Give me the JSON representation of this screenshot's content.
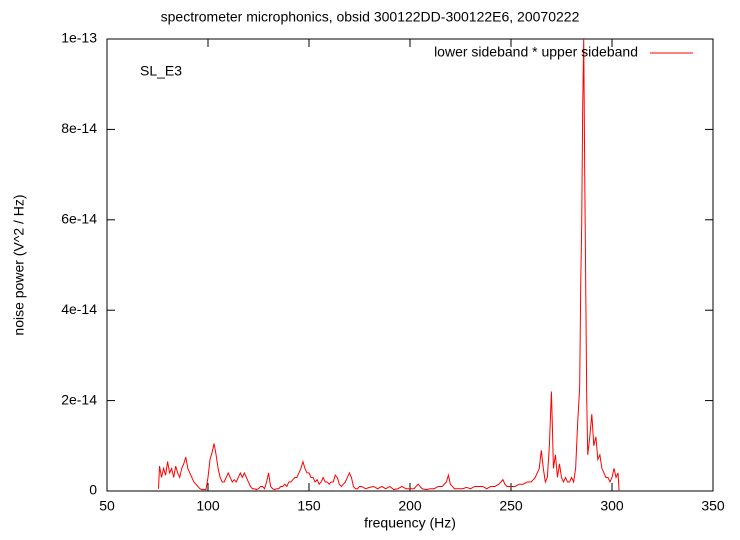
{
  "chart_data": {
    "type": "line",
    "title": "spectrometer microphonics, obsid 300122DD-300122E6, 20070222",
    "xlabel": "frequency (Hz)",
    "ylabel": "noise power (V^2 / Hz)",
    "annotation": "SL_E3",
    "legend": "top-right",
    "xlim": [
      50,
      350
    ],
    "xticks": [
      50,
      100,
      150,
      200,
      250,
      300,
      350
    ],
    "ylim": [
      0,
      1e-13
    ],
    "yticks": [
      0,
      {
        "value": 2e-14,
        "label": "2e-14"
      },
      {
        "value": 4e-14,
        "label": "4e-14"
      },
      {
        "value": 6e-14,
        "label": "6e-14"
      },
      {
        "value": 8e-14,
        "label": "8e-14"
      },
      {
        "value": 1e-13,
        "label": "1e-13"
      }
    ],
    "x": [
      75.5,
      76,
      77,
      78,
      79,
      80,
      81,
      82,
      83,
      84,
      85,
      86,
      87,
      88,
      89,
      90,
      91,
      92,
      93,
      94,
      95,
      96,
      97,
      98,
      99,
      100,
      101,
      102,
      103,
      104,
      105,
      106,
      107,
      108,
      109,
      110,
      111,
      112,
      113,
      114,
      115,
      116,
      117,
      118,
      119,
      120,
      121,
      122,
      123,
      124,
      125,
      126,
      127,
      128,
      129,
      130,
      131,
      132,
      133,
      134,
      135,
      136,
      137,
      138,
      139,
      140,
      141,
      142,
      143,
      144,
      145,
      146,
      147,
      148,
      149,
      150,
      151,
      152,
      153,
      154,
      155,
      156,
      157,
      158,
      159,
      160,
      161,
      162,
      163,
      164,
      165,
      166,
      167,
      168,
      169,
      170,
      171,
      172,
      173,
      174,
      175,
      176,
      178,
      180,
      182,
      184,
      186,
      188,
      190,
      192,
      194,
      196,
      198,
      200,
      202,
      204,
      206,
      208,
      210,
      212,
      214,
      216,
      218,
      219,
      220,
      222,
      224,
      226,
      228,
      230,
      232,
      234,
      236,
      238,
      240,
      242,
      244,
      246,
      247,
      248,
      250,
      252,
      254,
      256,
      258,
      260,
      262,
      264,
      265,
      266,
      267,
      268,
      269,
      270,
      270.5,
      271,
      272,
      273,
      274,
      275,
      276,
      277,
      278,
      279,
      280,
      281,
      282,
      283,
      284,
      284.5,
      285,
      285.5,
      286,
      286.5,
      287,
      287.5,
      288,
      289,
      290,
      291,
      292,
      293,
      294,
      295,
      296,
      297,
      298,
      299,
      300,
      301,
      302,
      303,
      303.5
    ],
    "series": [
      {
        "name": "lower sideband * upper sideband",
        "color": "#ff0000",
        "values": [
          5e-16,
          5.5e-15,
          3e-15,
          5e-15,
          3.5e-15,
          6.5e-15,
          4e-15,
          5e-15,
          3e-15,
          5.5e-15,
          4e-15,
          3e-15,
          5e-15,
          6e-15,
          7.5e-15,
          5e-15,
          4e-15,
          3e-15,
          2e-15,
          1.5e-15,
          1e-15,
          5e-16,
          3e-16,
          3e-16,
          3e-16,
          3e-15,
          7e-15,
          8.5e-15,
          1.05e-14,
          8e-15,
          5e-15,
          3e-15,
          2e-15,
          2e-15,
          3e-15,
          4e-15,
          3e-15,
          2e-15,
          2.5e-15,
          2e-15,
          3e-15,
          4e-15,
          3e-15,
          4e-15,
          3e-15,
          2e-15,
          1e-15,
          5e-16,
          5e-16,
          3e-16,
          5e-16,
          1e-15,
          1e-15,
          5e-16,
          2e-15,
          4e-15,
          1e-15,
          5e-16,
          3e-16,
          5e-16,
          5e-16,
          1e-15,
          1e-15,
          1.5e-15,
          1e-15,
          2e-15,
          2e-15,
          2.5e-15,
          3e-15,
          3e-15,
          4e-15,
          5e-15,
          6.5e-15,
          5e-15,
          4e-15,
          4e-15,
          3e-15,
          3e-15,
          2e-15,
          2.5e-15,
          1.5e-15,
          2e-15,
          3e-15,
          2e-15,
          2e-15,
          1.5e-15,
          2e-15,
          2e-15,
          3.5e-15,
          3e-15,
          1.5e-15,
          1e-15,
          1.5e-15,
          2e-15,
          3e-15,
          4e-15,
          3e-15,
          1e-15,
          5e-16,
          5e-16,
          1e-15,
          1e-15,
          5e-16,
          8e-16,
          1e-15,
          5e-16,
          1e-15,
          5e-16,
          1e-15,
          3e-16,
          5e-16,
          1e-15,
          5e-16,
          5e-16,
          5e-16,
          1.5e-15,
          5e-16,
          3e-16,
          5e-16,
          5e-16,
          1e-15,
          1e-15,
          2e-15,
          3.5e-15,
          1.5e-15,
          5e-16,
          5e-16,
          5e-16,
          8e-16,
          5e-16,
          1e-15,
          1e-15,
          1e-15,
          5e-16,
          1e-15,
          1e-15,
          1.5e-15,
          2.5e-15,
          1.5e-15,
          1e-15,
          1e-15,
          1e-15,
          1.5e-15,
          1.5e-15,
          2e-15,
          2e-15,
          3e-15,
          5e-15,
          9e-15,
          5e-15,
          2e-15,
          3e-15,
          1e-14,
          2.2e-14,
          1.4e-14,
          5e-15,
          8e-15,
          3e-15,
          6e-15,
          3e-15,
          2e-15,
          3e-15,
          2e-15,
          2e-15,
          3e-15,
          2e-15,
          5e-15,
          1.5e-14,
          2.3e-14,
          4.5e-14,
          5.9e-14,
          8.5e-14,
          1e-13,
          7e-14,
          4.5e-14,
          2e-14,
          8e-15,
          1.2e-14,
          1.7e-14,
          1e-14,
          1.2e-14,
          7e-15,
          8e-15,
          5e-15,
          4e-15,
          3e-15,
          3e-15,
          2e-15,
          3e-15,
          5e-15,
          3e-15,
          4e-15,
          0
        ]
      }
    ]
  }
}
